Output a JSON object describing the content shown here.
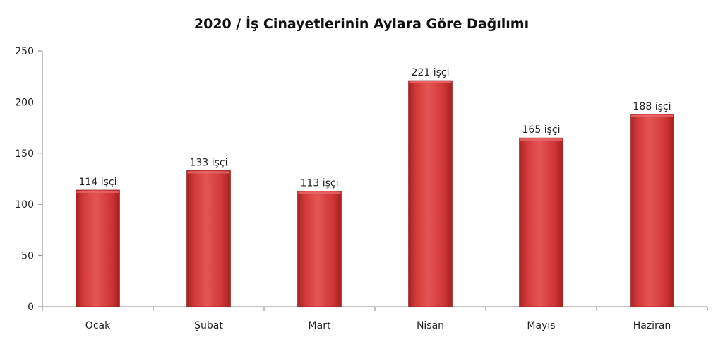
{
  "chart_data": {
    "type": "bar",
    "title": "2020 / İş Cinayetlerinin Aylara Göre Dağılımı",
    "categories": [
      "Ocak",
      "Şubat",
      "Mart",
      "Nisan",
      "Mayıs",
      "Haziran"
    ],
    "values": [
      114,
      133,
      113,
      221,
      165,
      188
    ],
    "data_labels": [
      "114 işçi",
      "133 işçi",
      "113 işçi",
      "221 işçi",
      "165 işçi",
      "188 işçi"
    ],
    "yticks": [
      "0",
      "50",
      "100",
      "150",
      "200",
      "250"
    ],
    "ylim": [
      0,
      250
    ],
    "xlabel": "",
    "ylabel": "",
    "grid": false,
    "legend": "none",
    "colors": {
      "bar": "#d43a3a",
      "bar_dark": "#9e1f1f",
      "bar_light": "#e86a6a",
      "axis": "#868686"
    }
  }
}
